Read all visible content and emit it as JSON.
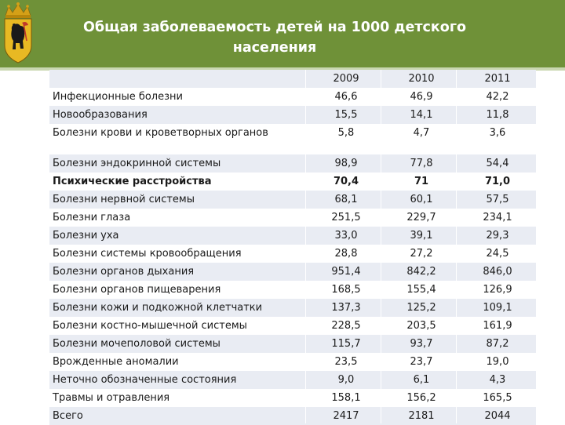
{
  "header": {
    "title_line1": "Общая заболеваемость детей на 1000 детского",
    "title_line2": "населения",
    "accent": "#6f9138"
  },
  "emblem": {
    "icon": "yaroslavl-coat-of-arms-icon"
  },
  "table": {
    "years": [
      "2009",
      "2010",
      "2011"
    ],
    "group1": [
      {
        "name": "Инфекционные болезни",
        "v": [
          "46,6",
          "46,9",
          "42,2"
        ]
      },
      {
        "name": "Новообразования",
        "v": [
          "15,5",
          "14,1",
          "11,8"
        ]
      },
      {
        "name": "Болезни крови и кроветворных органов",
        "v": [
          "5,8",
          "4,7",
          "3,6"
        ]
      }
    ],
    "group2": [
      {
        "name": "Болезни эндокринной системы",
        "v": [
          "98,9",
          "77,8",
          "54,4"
        ]
      },
      {
        "name": "Психические расстройства",
        "v": [
          "70,4",
          "71",
          "71,0"
        ]
      },
      {
        "name": "Болезни нервной системы",
        "v": [
          "68,1",
          "60,1",
          "57,5"
        ]
      },
      {
        "name": "Болезни глаза",
        "v": [
          "251,5",
          "229,7",
          "234,1"
        ]
      },
      {
        "name": "Болезни уха",
        "v": [
          "33,0",
          "39,1",
          "29,3"
        ]
      },
      {
        "name": "Болезни системы кровообращения",
        "v": [
          "28,8",
          "27,2",
          "24,5"
        ]
      },
      {
        "name": "Болезни органов дыхания",
        "v": [
          "951,4",
          "842,2",
          "846,0"
        ]
      },
      {
        "name": "Болезни органов пищеварения",
        "v": [
          "168,5",
          "155,4",
          "126,9"
        ]
      },
      {
        "name": "Болезни кожи и подкожной клетчатки",
        "v": [
          "137,3",
          "125,2",
          "109,1"
        ]
      },
      {
        "name": "Болезни костно-мышечной системы",
        "v": [
          "228,5",
          "203,5",
          "161,9"
        ]
      },
      {
        "name": "Болезни мочеполовой системы",
        "v": [
          "115,7",
          "93,7",
          "87,2"
        ]
      },
      {
        "name": "Врожденные аномалии",
        "v": [
          "23,5",
          "23,7",
          "19,0"
        ]
      },
      {
        "name": "Неточно обозначенные состояния",
        "v": [
          "9,0",
          "6,1",
          "4,3"
        ]
      },
      {
        "name": "Травмы и отравления",
        "v": [
          "158,1",
          "156,2",
          "165,5"
        ]
      },
      {
        "name": "Всего",
        "v": [
          "2417",
          "2181",
          "2044"
        ]
      }
    ]
  }
}
